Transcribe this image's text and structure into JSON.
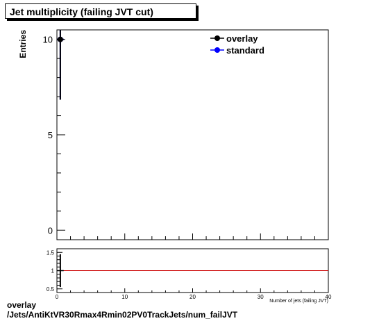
{
  "title": "Jet multiplicity (failing JVT cut)",
  "footer": {
    "line1": "overlay",
    "line2": "/Jets/AntiKtVR30Rmax4Rmin02PV0TrackJets/num_failJVT"
  },
  "chart_data": [
    {
      "type": "scatter",
      "title": "Jet multiplicity (failing JVT cut)",
      "ylabel": "Entries",
      "xlabel": "Number of jets (failing JVT)",
      "xlim": [
        0,
        40
      ],
      "ylim": [
        -0.5,
        10.5
      ],
      "yticks": [
        0,
        5,
        10
      ],
      "legend_position": "top-right",
      "series": [
        {
          "name": "overlay",
          "color": "#000000",
          "points": [
            {
              "x": 0.5,
              "y": 10,
              "yerr": 3.16
            }
          ]
        },
        {
          "name": "standard",
          "color": "#0000ff",
          "points": [
            {
              "x": 0.5,
              "y": 10,
              "yerr": 3.16
            }
          ]
        }
      ]
    },
    {
      "type": "line",
      "title": "",
      "xlim": [
        0,
        40
      ],
      "ylim": [
        0.4,
        1.6
      ],
      "xticks": [
        0,
        10,
        20,
        30,
        40
      ],
      "yticks": [
        0.5,
        1,
        1.5
      ],
      "reference_line": {
        "y": 1,
        "color": "#cc0000"
      },
      "ratio_points": [
        {
          "x": 0.5,
          "y": 1,
          "yerr": 0.45
        }
      ]
    }
  ]
}
